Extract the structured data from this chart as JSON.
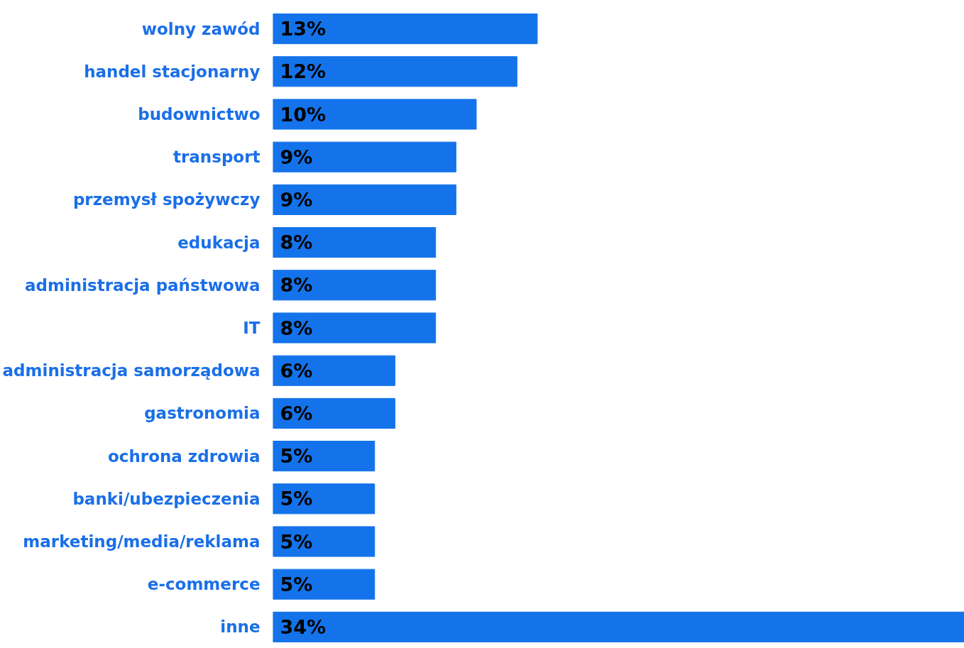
{
  "chart_data": {
    "type": "bar",
    "orientation": "horizontal",
    "categories": [
      "wolny zawód",
      "handel stacjonarny",
      "budownictwo",
      "transport",
      "przemysł spożywczy",
      "edukacja",
      "administracja państwowa",
      "IT",
      "administracja samorządowa",
      "gastronomia",
      "ochrona zdrowia",
      "banki/ubezpieczenia",
      "marketing/media/reklama",
      "e-commerce",
      "inne"
    ],
    "values": [
      13,
      12,
      10,
      9,
      9,
      8,
      8,
      8,
      6,
      6,
      5,
      5,
      5,
      5,
      34
    ],
    "value_labels": [
      "13%",
      "12%",
      "10%",
      "9%",
      "9%",
      "8%",
      "8%",
      "8%",
      "6%",
      "6%",
      "5%",
      "5%",
      "5%",
      "5%",
      "34%"
    ],
    "color": "#1473ea",
    "tick_labels": "y"
  }
}
